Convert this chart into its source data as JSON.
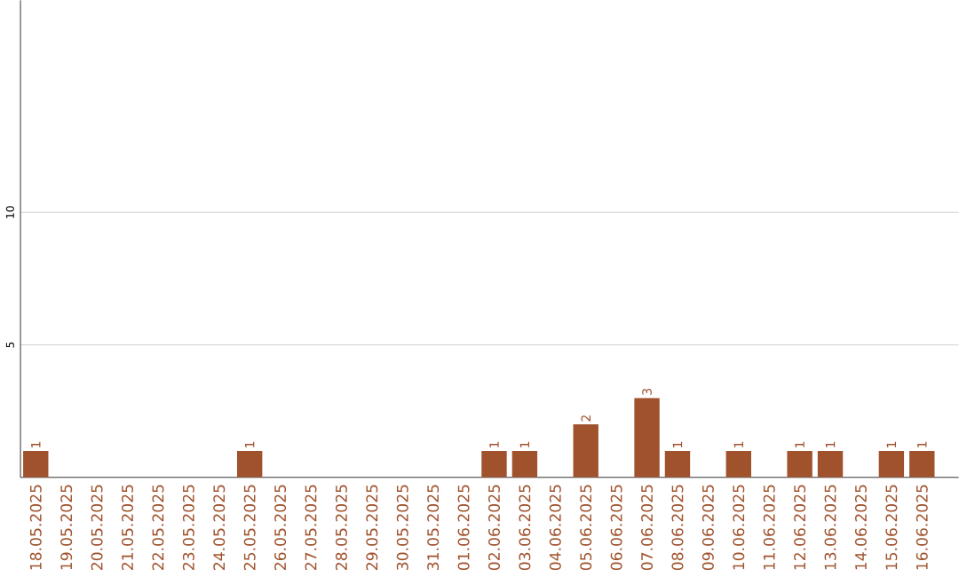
{
  "chart_data": {
    "type": "bar",
    "categories": [
      "18.05.2025",
      "19.05.2025",
      "20.05.2025",
      "21.05.2025",
      "22.05.2025",
      "23.05.2025",
      "24.05.2025",
      "25.05.2025",
      "26.05.2025",
      "27.05.2025",
      "28.05.2025",
      "29.05.2025",
      "30.05.2025",
      "31.05.2025",
      "01.06.2025",
      "02.06.2025",
      "03.06.2025",
      "04.06.2025",
      "05.06.2025",
      "06.06.2025",
      "07.06.2025",
      "08.06.2025",
      "09.06.2025",
      "10.06.2025",
      "11.06.2025",
      "12.06.2025",
      "13.06.2025",
      "14.06.2025",
      "15.06.2025",
      "16.06.2025"
    ],
    "values": [
      1,
      0,
      0,
      0,
      0,
      0,
      0,
      1,
      0,
      0,
      0,
      0,
      0,
      0,
      0,
      1,
      1,
      0,
      2,
      0,
      3,
      1,
      0,
      1,
      0,
      1,
      1,
      0,
      1,
      1
    ],
    "value_labels": [
      "1",
      null,
      null,
      null,
      null,
      null,
      null,
      "1",
      null,
      null,
      null,
      null,
      null,
      null,
      null,
      "1",
      "1",
      null,
      "2",
      null,
      "3",
      "1",
      null,
      "1",
      null,
      "1",
      "1",
      null,
      "1",
      "1"
    ],
    "color": "#a0522d",
    "ylim": [
      0,
      18
    ],
    "yticks": [
      5,
      10
    ],
    "grid": "y"
  }
}
